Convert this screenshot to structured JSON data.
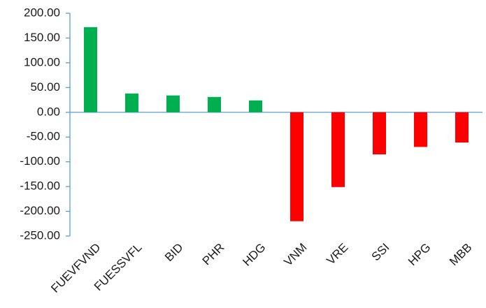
{
  "chart_data": {
    "type": "bar",
    "categories": [
      "FUEVFVND",
      "FUESSVFL",
      "BID",
      "PHR",
      "HDG",
      "VNM",
      "VRE",
      "SSI",
      "HPG",
      "MBB"
    ],
    "values": [
      172,
      38,
      34,
      31,
      24,
      -220,
      -151,
      -85,
      -70,
      -61
    ],
    "colors": [
      "#00b050",
      "#00b050",
      "#00b050",
      "#00b050",
      "#00b050",
      "#ff0000",
      "#ff0000",
      "#ff0000",
      "#ff0000",
      "#ff0000"
    ],
    "ylim": [
      -250,
      200
    ],
    "yticks": [
      {
        "value": -250,
        "label": "-250.00"
      },
      {
        "value": -200,
        "label": "-200.00"
      },
      {
        "value": -150,
        "label": "-150.00"
      },
      {
        "value": -100,
        "label": "-100.00"
      },
      {
        "value": -50,
        "label": "-50.00"
      },
      {
        "value": 0,
        "label": "0.00"
      },
      {
        "value": 50,
        "label": "50.00"
      },
      {
        "value": 100,
        "label": "100.00"
      },
      {
        "value": 150,
        "label": "150.00"
      },
      {
        "value": 200,
        "label": "200.00"
      }
    ],
    "grid": false
  }
}
